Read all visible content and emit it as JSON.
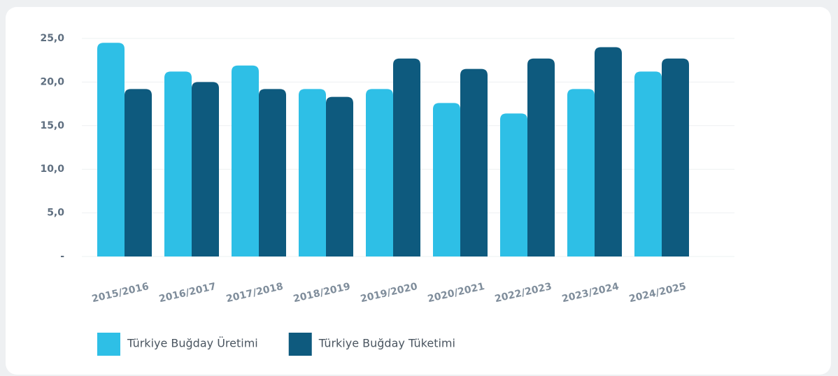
{
  "chart_data": {
    "type": "bar",
    "categories": [
      "2015/2016",
      "2016/2017",
      "2017/2018",
      "2018/2019",
      "2019/2020",
      "2020/2021",
      "2022/2023",
      "2023/2024",
      "2024/2025"
    ],
    "series": [
      {
        "name": "Türkiye Buğday Üretimi",
        "color": "#2ebfe6",
        "values": [
          24.5,
          21.2,
          21.9,
          19.2,
          19.2,
          17.6,
          16.4,
          19.2,
          21.2
        ]
      },
      {
        "name": "Türkiye Buğday Tüketimi",
        "color": "#0e5a7e",
        "values": [
          19.2,
          20.0,
          19.2,
          18.3,
          22.7,
          21.5,
          22.7,
          24.0,
          22.7
        ]
      }
    ],
    "ylim": [
      0,
      25
    ],
    "yticks": [
      {
        "value": 0,
        "label": "-"
      },
      {
        "value": 5,
        "label": "5,0"
      },
      {
        "value": 10,
        "label": "10,0"
      },
      {
        "value": 15,
        "label": "15,0"
      },
      {
        "value": 20,
        "label": "20,0"
      },
      {
        "value": 25,
        "label": "25,0"
      }
    ],
    "grid": true,
    "legend": "bottom"
  }
}
